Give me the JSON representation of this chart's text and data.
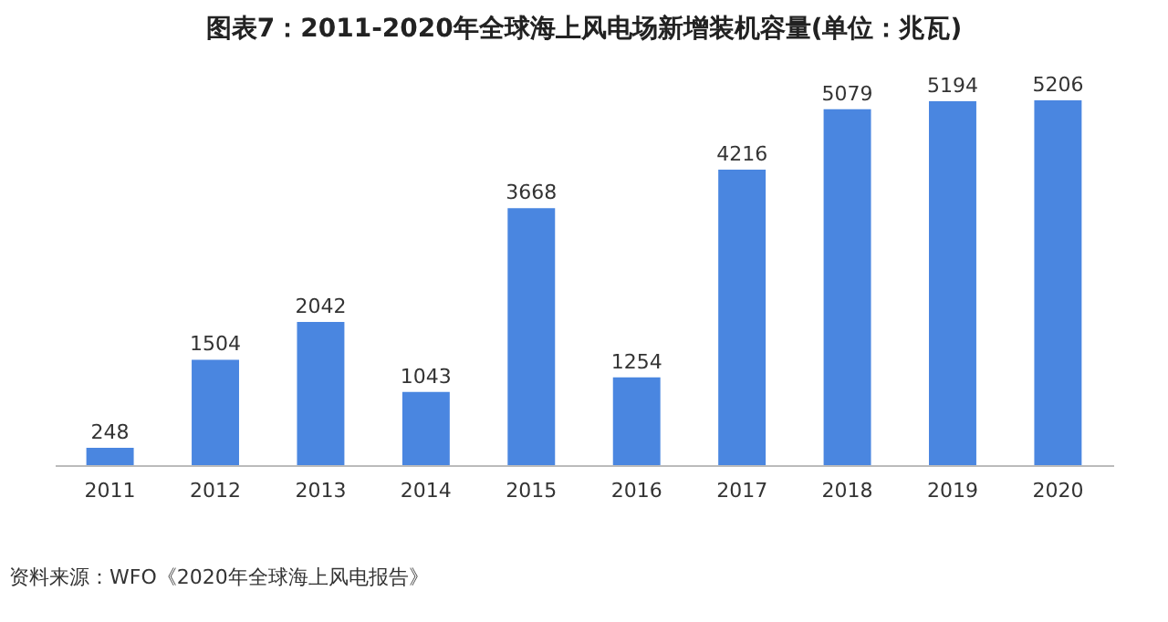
{
  "chart_data": {
    "type": "bar",
    "title": "图表7：2011-2020年全球海上风电场新增装机容量(单位：兆瓦)",
    "categories": [
      "2011",
      "2012",
      "2013",
      "2014",
      "2015",
      "2016",
      "2017",
      "2018",
      "2019",
      "2020"
    ],
    "values": [
      248,
      1504,
      2042,
      1043,
      3668,
      1254,
      4216,
      5079,
      5194,
      5206
    ],
    "color": "#4a86e0",
    "data_labels": true,
    "grid": false,
    "tick_labels": "x",
    "annotations": [
      "资料来源：WFO《2020年全球海上风电报告》"
    ]
  }
}
